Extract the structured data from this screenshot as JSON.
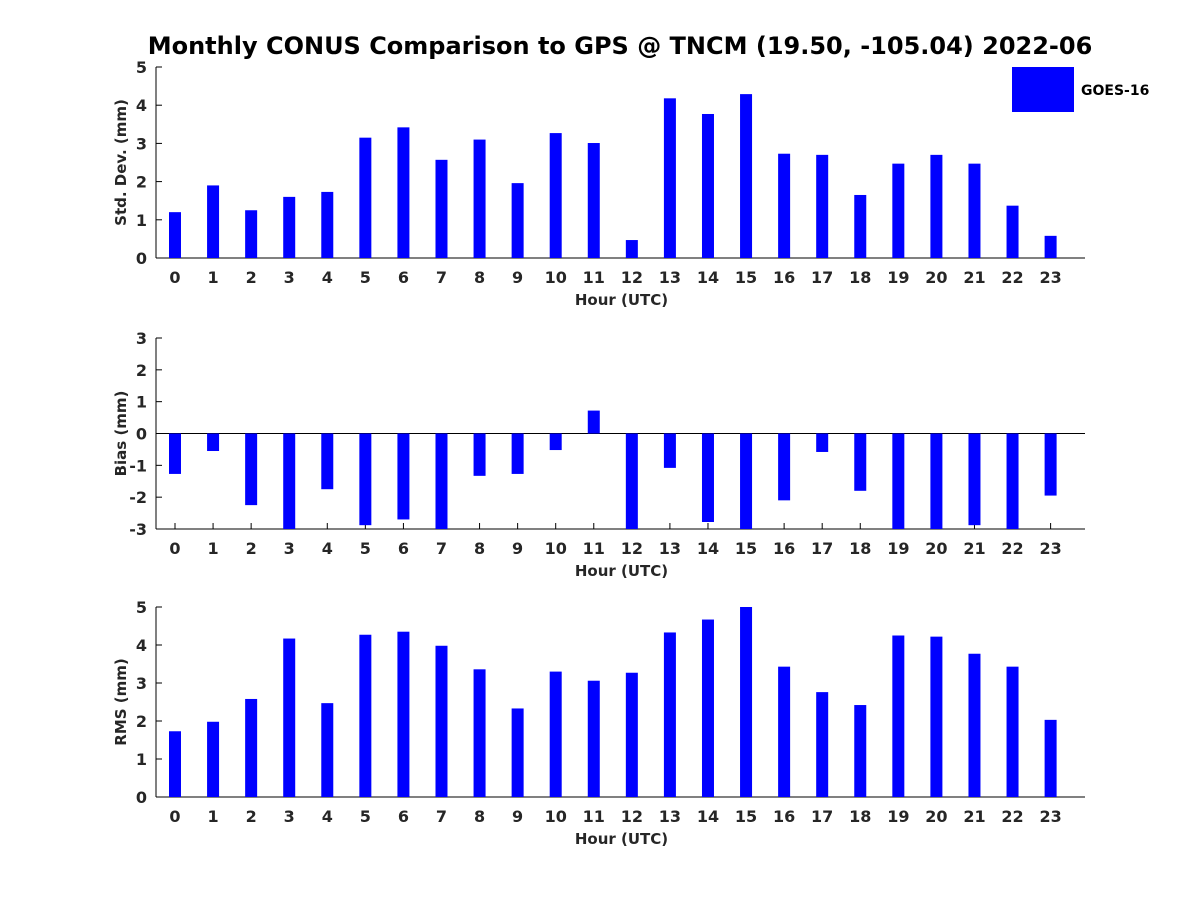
{
  "title": "Monthly CONUS Comparison to GPS @ TNCM (19.50, -105.04) 2022-06",
  "legend": {
    "label": "GOES-16",
    "color": "#0000ff"
  },
  "chart_data": [
    {
      "type": "bar",
      "name": "std-dev",
      "categories": [
        "0",
        "1",
        "2",
        "3",
        "4",
        "5",
        "6",
        "7",
        "8",
        "9",
        "10",
        "11",
        "12",
        "13",
        "14",
        "15",
        "16",
        "17",
        "18",
        "19",
        "20",
        "21",
        "22",
        "23"
      ],
      "series": [
        {
          "name": "GOES-16",
          "values": [
            1.2,
            1.9,
            1.25,
            1.6,
            1.73,
            3.15,
            3.42,
            2.57,
            3.1,
            1.96,
            3.27,
            3.01,
            0.47,
            4.18,
            3.77,
            4.29,
            2.73,
            2.7,
            1.65,
            2.47,
            2.7,
            2.47,
            1.37,
            0.58
          ]
        }
      ],
      "xlabel": "Hour (UTC)",
      "ylabel": "Std. Dev. (mm)",
      "ylim": [
        0,
        5
      ],
      "yticks": [
        "0",
        "1",
        "2",
        "3",
        "4",
        "5"
      ]
    },
    {
      "type": "bar",
      "name": "bias",
      "categories": [
        "0",
        "1",
        "2",
        "3",
        "4",
        "5",
        "6",
        "7",
        "8",
        "9",
        "10",
        "11",
        "12",
        "13",
        "14",
        "15",
        "16",
        "17",
        "18",
        "19",
        "20",
        "21",
        "22",
        "23"
      ],
      "series": [
        {
          "name": "GOES-16",
          "values": [
            -1.27,
            -0.55,
            -2.25,
            -3.0,
            -1.75,
            -2.88,
            -2.7,
            -3.0,
            -1.33,
            -1.27,
            -0.52,
            0.72,
            -3.0,
            -1.08,
            -2.78,
            -3.0,
            -2.1,
            -0.58,
            -1.8,
            -3.0,
            -3.0,
            -2.88,
            -3.0,
            -1.95
          ]
        }
      ],
      "xlabel": "Hour (UTC)",
      "ylabel": "Bias (mm)",
      "ylim": [
        -3,
        3
      ],
      "yticks": [
        "-3",
        "-2",
        "-1",
        "0",
        "1",
        "2",
        "3"
      ]
    },
    {
      "type": "bar",
      "name": "rms",
      "categories": [
        "0",
        "1",
        "2",
        "3",
        "4",
        "5",
        "6",
        "7",
        "8",
        "9",
        "10",
        "11",
        "12",
        "13",
        "14",
        "15",
        "16",
        "17",
        "18",
        "19",
        "20",
        "21",
        "22",
        "23"
      ],
      "series": [
        {
          "name": "GOES-16",
          "values": [
            1.73,
            1.98,
            2.58,
            4.17,
            2.47,
            4.27,
            4.35,
            3.98,
            3.36,
            2.33,
            3.3,
            3.06,
            3.27,
            4.33,
            4.67,
            5.0,
            3.43,
            2.76,
            2.42,
            4.25,
            4.22,
            3.77,
            3.43,
            2.03
          ]
        }
      ],
      "xlabel": "Hour (UTC)",
      "ylabel": "RMS (mm)",
      "ylim": [
        0,
        5
      ],
      "yticks": [
        "0",
        "1",
        "2",
        "3",
        "4",
        "5"
      ]
    }
  ]
}
